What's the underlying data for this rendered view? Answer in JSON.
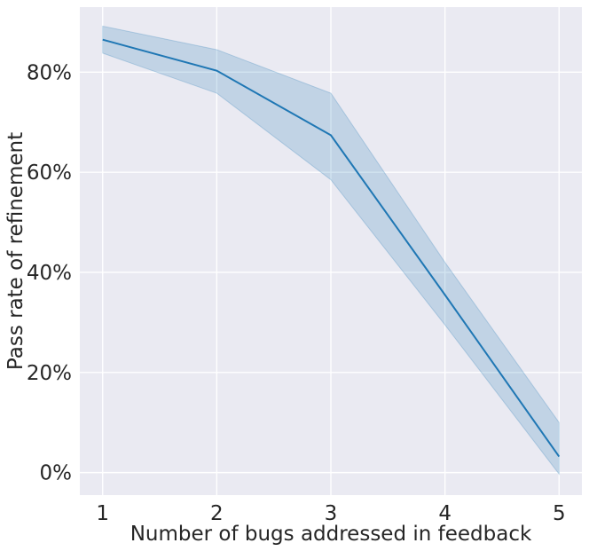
{
  "chart_data": {
    "type": "line",
    "title": "",
    "xlabel": "Number of bugs addressed in feedback",
    "ylabel": "Pass rate of refinement",
    "x": [
      1,
      2,
      3,
      4,
      5
    ],
    "xticks": [
      "1",
      "2",
      "3",
      "4",
      "5"
    ],
    "yticks": [
      0,
      20,
      40,
      60,
      80
    ],
    "ytick_labels": [
      "0%",
      "20%",
      "40%",
      "60%",
      "80%"
    ],
    "xlim": [
      0.8,
      5.2
    ],
    "ylim": [
      -4.5,
      93
    ],
    "grid": true,
    "series": [
      {
        "values": [
          86.5,
          80.3,
          67.4,
          35.5,
          3.2
        ],
        "ci_lower": [
          83.8,
          75.8,
          58.5,
          29.5,
          -0.3
        ],
        "ci_upper": [
          89.2,
          84.5,
          75.8,
          42.0,
          10.0
        ],
        "color": "#1f77b4",
        "band_color": "#1f77b4"
      }
    ],
    "background": "#eaeaf2",
    "grid_color": "#ffffff"
  }
}
